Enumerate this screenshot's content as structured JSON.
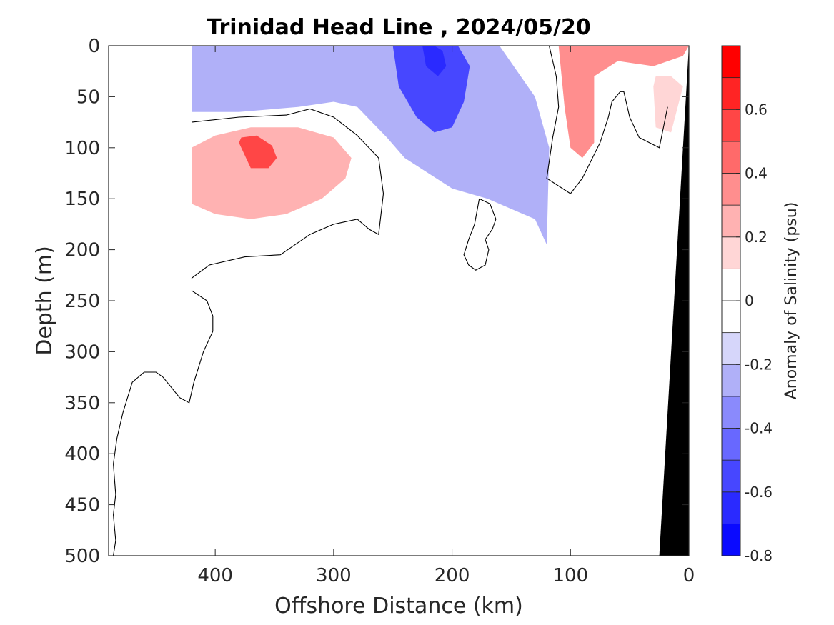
{
  "chart_data": {
    "type": "contour",
    "title": "Trinidad Head Line , 2024/05/20",
    "xlabel": "Offshore Distance (km)",
    "ylabel": "Depth (m)",
    "xlim": [
      490,
      0
    ],
    "ylim": [
      500,
      0
    ],
    "x_reversed": true,
    "y_reversed": true,
    "xticks": [
      400,
      300,
      200,
      100,
      0
    ],
    "yticks": [
      0,
      50,
      100,
      150,
      200,
      250,
      300,
      350,
      400,
      450,
      500
    ],
    "colorbar": {
      "label": "Anomaly of Salinity (psu)",
      "range": [
        -0.8,
        0.8
      ],
      "levels": [
        -0.8,
        -0.7,
        -0.6,
        -0.5,
        -0.4,
        -0.3,
        -0.2,
        -0.1,
        0,
        0.1,
        0.2,
        0.3,
        0.4,
        0.5,
        0.6,
        0.7,
        0.8
      ],
      "ticks": [
        -0.8,
        -0.6,
        -0.4,
        -0.2,
        0,
        0.2,
        0.4,
        0.6
      ],
      "colors": [
        "#0a0aff",
        "#2a2aff",
        "#4747ff",
        "#6868ff",
        "#8a8afc",
        "#b0b0f8",
        "#d6d6fa",
        "#ffffff",
        "#ffffff",
        "#ffd6d6",
        "#ffb2b2",
        "#ff8e8e",
        "#ff6a6a",
        "#ff4646",
        "#ff2424",
        "#ff0000"
      ]
    },
    "bathymetry": {
      "color": "#000000",
      "surface_offshore_km": 0,
      "bottom_offshore_km": 25
    },
    "regions": [
      {
        "name": "upper-negative-layer",
        "anomaly": -0.25,
        "x": [
          420,
          420,
          380,
          330,
          300,
          280,
          255,
          240,
          220,
          200,
          170,
          150,
          130,
          120,
          118,
          130,
          160,
          200,
          240,
          280,
          320,
          350,
          380,
          420
        ],
        "y": [
          0,
          65,
          65,
          60,
          55,
          60,
          90,
          110,
          125,
          140,
          150,
          160,
          170,
          195,
          100,
          50,
          0,
          0,
          0,
          0,
          0,
          0,
          0,
          0
        ]
      },
      {
        "name": "negative-core",
        "anomaly": -0.55,
        "x": [
          250,
          245,
          230,
          215,
          200,
          190,
          185,
          195,
          210,
          230,
          245
        ],
        "y": [
          0,
          40,
          70,
          85,
          80,
          55,
          20,
          0,
          0,
          0,
          0
        ]
      },
      {
        "name": "negative-center",
        "anomaly": -0.7,
        "x": [
          225,
          222,
          212,
          205,
          208,
          215,
          220
        ],
        "y": [
          0,
          20,
          30,
          20,
          5,
          0,
          0
        ]
      },
      {
        "name": "subsurface-positive-eddy",
        "anomaly": 0.25,
        "x": [
          420,
          420,
          400,
          370,
          340,
          310,
          290,
          285,
          300,
          330,
          370,
          400
        ],
        "y": [
          100,
          155,
          165,
          170,
          165,
          150,
          130,
          110,
          90,
          80,
          80,
          88
        ]
      },
      {
        "name": "subsurface-positive-core",
        "anomaly": 0.5,
        "x": [
          380,
          370,
          355,
          348,
          352,
          365,
          378
        ],
        "y": [
          95,
          120,
          120,
          110,
          98,
          88,
          90
        ]
      },
      {
        "name": "nearshore-positive",
        "anomaly": 0.3,
        "x": [
          110,
          105,
          100,
          90,
          80,
          80,
          60,
          30,
          5,
          0,
          0,
          40,
          80,
          110
        ],
        "y": [
          0,
          60,
          100,
          110,
          95,
          30,
          15,
          20,
          10,
          0,
          0,
          0,
          0,
          0
        ]
      },
      {
        "name": "nearshore-deep-positive",
        "anomaly": 0.15,
        "x": [
          30,
          28,
          15,
          5,
          15,
          28
        ],
        "y": [
          40,
          80,
          85,
          40,
          30,
          30
        ]
      }
    ],
    "zero_contours": [
      {
        "x": [
          420,
          380,
          340,
          320,
          300,
          280,
          262,
          258,
          262,
          270,
          280,
          300,
          320,
          345,
          375,
          405,
          420
        ],
        "y": [
          75,
          70,
          68,
          62,
          70,
          88,
          110,
          145,
          185,
          180,
          170,
          175,
          185,
          205,
          207,
          215,
          228
        ]
      },
      {
        "x": [
          420,
          407,
          402,
          402,
          410,
          418,
          422,
          430,
          444,
          450,
          460,
          470,
          478,
          483,
          486,
          484,
          486,
          484,
          486,
          488,
          484
        ],
        "y": [
          240,
          250,
          265,
          280,
          300,
          330,
          350,
          345,
          325,
          320,
          320,
          330,
          360,
          385,
          410,
          440,
          460,
          485,
          500,
          500,
          500
        ]
      },
      {
        "x": [
          177,
          168,
          163,
          166,
          172,
          169,
          172,
          180,
          186,
          190,
          186,
          181,
          177
        ],
        "y": [
          150,
          155,
          170,
          180,
          190,
          200,
          215,
          220,
          215,
          205,
          190,
          175,
          150
        ]
      },
      {
        "x": [
          118,
          112,
          110,
          115,
          120,
          100,
          90,
          75,
          68,
          65,
          58,
          55,
          50,
          42,
          25,
          18
        ],
        "y": [
          0,
          30,
          60,
          90,
          130,
          145,
          130,
          95,
          70,
          55,
          45,
          45,
          70,
          90,
          100,
          60
        ]
      }
    ]
  }
}
